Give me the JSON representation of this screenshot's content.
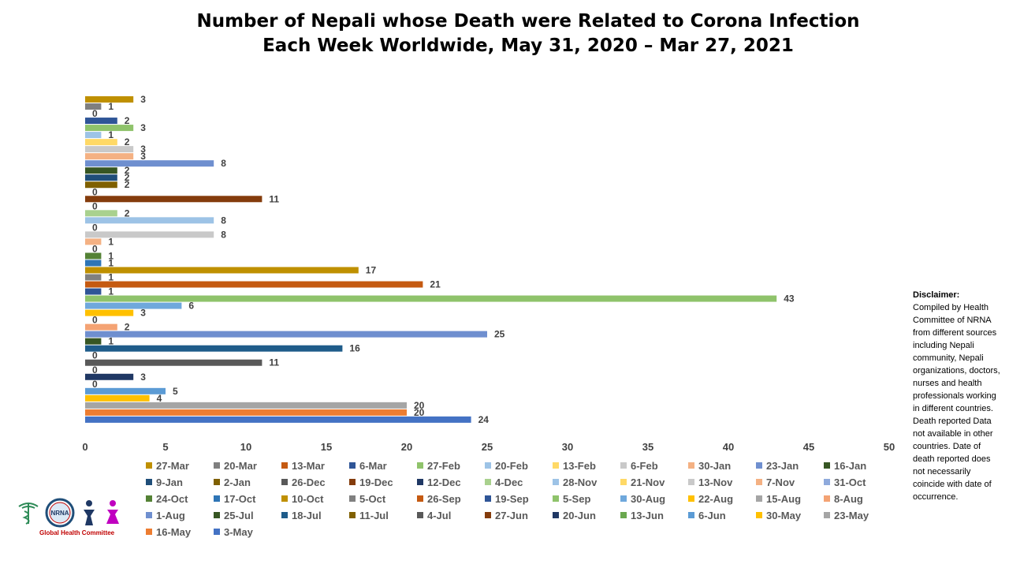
{
  "title_lines": [
    "Number of Nepali whose Death were Related to Corona Infection",
    "Each Week Worldwide, May 31, 2020 – Mar 27, 2021"
  ],
  "disclaimer": {
    "title": "Disclaimer:",
    "text": "Compiled by Health Committee of NRNA from different sources including Nepali community, Nepali organizations, doctors, nurses and health professionals working in different countries. Death reported Data not available in other countries. Date of death reported does not necessarily coincide with date of occurrence."
  },
  "logo": {
    "text": "NRNA",
    "caption": "Global Health Committee"
  },
  "chart_data": {
    "type": "bar",
    "orientation": "horizontal",
    "title": "Number of Nepali whose Death were Related to Corona Infection Each Week Worldwide, May 31, 2020 – Mar 27, 2021",
    "xlabel": "",
    "ylabel": "",
    "xlim": [
      0,
      50
    ],
    "x_ticks": [
      0,
      5,
      10,
      15,
      20,
      25,
      30,
      35,
      40,
      45,
      50
    ],
    "grid": false,
    "legend_position": "bottom",
    "data_labels": true,
    "categories": [
      "27-Mar",
      "20-Mar",
      "13-Mar",
      "6-Mar",
      "27-Feb",
      "20-Feb",
      "13-Feb",
      "6-Feb",
      "30-Jan",
      "23-Jan",
      "16-Jan",
      "9-Jan",
      "2-Jan",
      "26-Dec",
      "19-Dec",
      "12-Dec",
      "4-Dec",
      "28-Nov",
      "21-Nov",
      "13-Nov",
      "7-Nov",
      "31-Oct",
      "24-Oct",
      "17-Oct",
      "10-Oct",
      "5-Oct",
      "26-Sep",
      "19-Sep",
      "5-Sep",
      "30-Aug",
      "22-Aug",
      "15-Aug",
      "8-Aug",
      "1-Aug",
      "25-Jul",
      "18-Jul",
      "11-Jul",
      "4-Jul",
      "27-Jun",
      "20-Jun",
      "13-Jun",
      "6-Jun",
      "30-May",
      "23-May",
      "16-May",
      "3-May"
    ],
    "values": [
      3,
      1,
      0,
      2,
      3,
      1,
      2,
      3,
      3,
      8,
      2,
      2,
      2,
      0,
      11,
      0,
      2,
      8,
      0,
      8,
      1,
      0,
      1,
      1,
      17,
      1,
      21,
      1,
      43,
      6,
      3,
      0,
      2,
      25,
      1,
      16,
      0,
      11,
      0,
      3,
      0,
      5,
      4,
      20,
      20,
      24
    ],
    "colors": [
      "#bf9000",
      "#7f7f7f",
      "#c55a11",
      "#2f5597",
      "#8fc36b",
      "#9dc3e6",
      "#ffd966",
      "#c9c9c9",
      "#f4b183",
      "#6f8fcf",
      "#375623",
      "#1f4e79",
      "#7f6000",
      "#595959",
      "#843c0c",
      "#1f3864",
      "#a9d18e",
      "#9dc3e6",
      "#ffd966",
      "#c9c9c9",
      "#f4b183",
      "#8faadc",
      "#548235",
      "#2e75b6",
      "#bf9000",
      "#808080",
      "#c55a11",
      "#2f5597",
      "#8fc36b",
      "#6fa8dc",
      "#ffc000",
      "#a5a5a5",
      "#f4a374",
      "#6f8fcf",
      "#375623",
      "#1f5c8a",
      "#806000",
      "#595959",
      "#843c0c",
      "#203864",
      "#6aa84f",
      "#5b9bd5",
      "#ffc000",
      "#a5a5a5",
      "#ed7d31",
      "#4472c4"
    ]
  }
}
